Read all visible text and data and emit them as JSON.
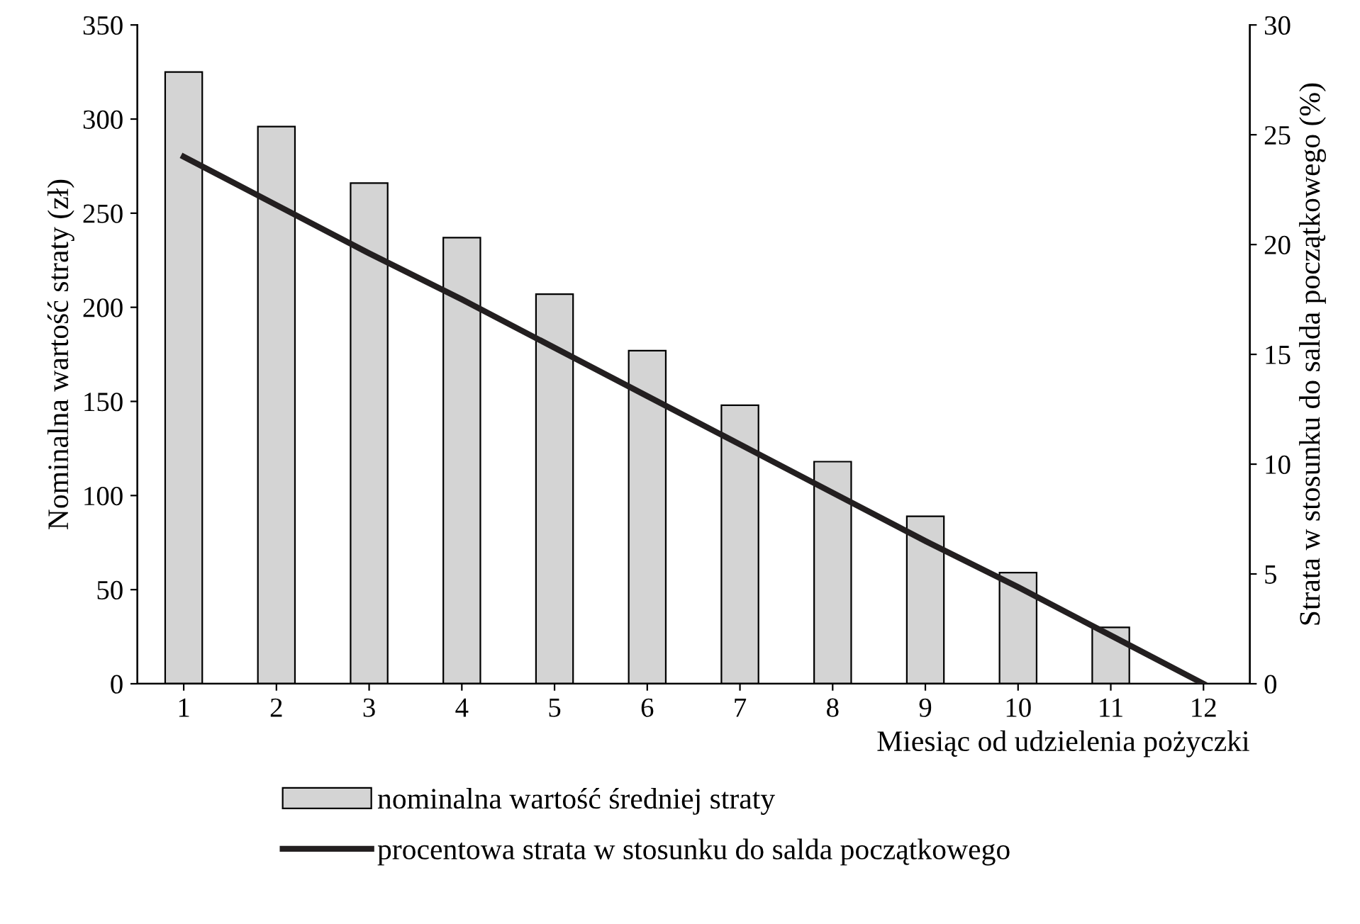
{
  "chart_data": {
    "type": "bar",
    "xlabel": "Miesiąc od udzielenia pożyczki",
    "ylabel": "Nominalna wartość straty (zł)",
    "y2label": "Strata w stosunku do salda początkowego (%)",
    "categories": [
      "1",
      "2",
      "3",
      "4",
      "5",
      "6",
      "7",
      "8",
      "9",
      "10",
      "11",
      "12"
    ],
    "series": [
      {
        "name": "nominalna wartość średniej straty",
        "color": "#d4d4d4",
        "values": [
          325,
          296,
          266,
          237,
          207,
          177,
          148,
          118,
          89,
          59,
          30,
          null
        ]
      },
      {
        "name": "procentowa strata w stosunku do salda początkowego",
        "type": "line",
        "axis": "y2",
        "color": "#231f20",
        "values": [
          24.0,
          21.8,
          19.6,
          17.5,
          15.3,
          13.1,
          10.9,
          8.7,
          6.5,
          4.4,
          2.2,
          0.0
        ]
      }
    ],
    "ylim": [
      0,
      350
    ],
    "yticks": [
      0,
      50,
      100,
      150,
      200,
      250,
      300,
      350
    ],
    "y2lim": [
      0,
      30
    ],
    "y2ticks": [
      0,
      5,
      10,
      15,
      20,
      25,
      30
    ],
    "grid": false,
    "legend": "bottom"
  }
}
